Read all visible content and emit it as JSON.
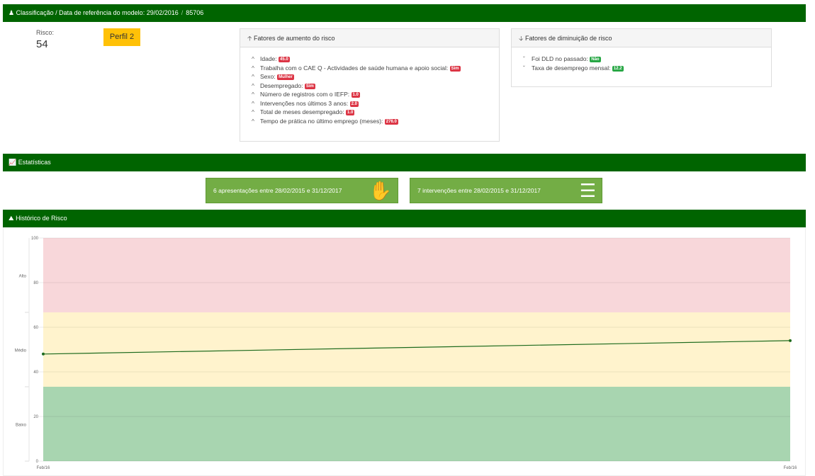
{
  "header": {
    "title": "Classificação / Data de referência do modelo: 29/02/2016",
    "id": "85706",
    "icon": "user-icon"
  },
  "risk": {
    "label": "Risco:",
    "value": "54",
    "profile": "Perfil 2"
  },
  "increase": {
    "title": "Fatores de aumento do risco",
    "items": [
      {
        "label": "Idade:",
        "badge": "45.0"
      },
      {
        "label": "Trabalha com o CAE Q - Actividades de saúde humana e apoio social:",
        "badge": "Sim"
      },
      {
        "label": "Sexo:",
        "badge": "Mulher"
      },
      {
        "label": "Desempregado:",
        "badge": "Sim"
      },
      {
        "label": "Número de registros com o IEFP:",
        "badge": "1.0"
      },
      {
        "label": "Intervenções nos últimos 3 anos:",
        "badge": "2.0"
      },
      {
        "label": "Total de meses desempregado:",
        "badge": "1.0"
      },
      {
        "label": "Tempo de prática no último emprego (meses):",
        "badge": "276.0"
      }
    ]
  },
  "decrease": {
    "title": "Fatores de diminuição de risco",
    "items": [
      {
        "label": "Foi DLD no passado:",
        "badge": "Não"
      },
      {
        "label": "Taxa de desemprego mensal:",
        "badge": "12.2"
      }
    ]
  },
  "stats": {
    "title": "Estatísticas",
    "presentations": "6 apresentações entre 28/02/2015 e 31/12/2017",
    "interventions": "7 intervenções entre 28/02/2015 e 31/12/2017"
  },
  "history": {
    "title": "Histórico de Risco"
  },
  "colors": {
    "header": "#006400",
    "high": "#f8d7da",
    "medium": "#fff3cd",
    "low": "#a8d5b0",
    "line": "#1e6b1e"
  },
  "chart_data": {
    "type": "line",
    "ylim": [
      0,
      100
    ],
    "yticks": [
      0,
      20,
      40,
      60,
      80,
      100
    ],
    "bands": [
      {
        "label": "Baixo",
        "from": 0,
        "to": 33.33
      },
      {
        "label": "Médio",
        "from": 33.33,
        "to": 66.67
      },
      {
        "label": "Alto",
        "from": 66.67,
        "to": 100
      }
    ],
    "x": [
      "Feb/16",
      "Feb/16"
    ],
    "values": [
      48,
      54
    ],
    "grid": true
  }
}
